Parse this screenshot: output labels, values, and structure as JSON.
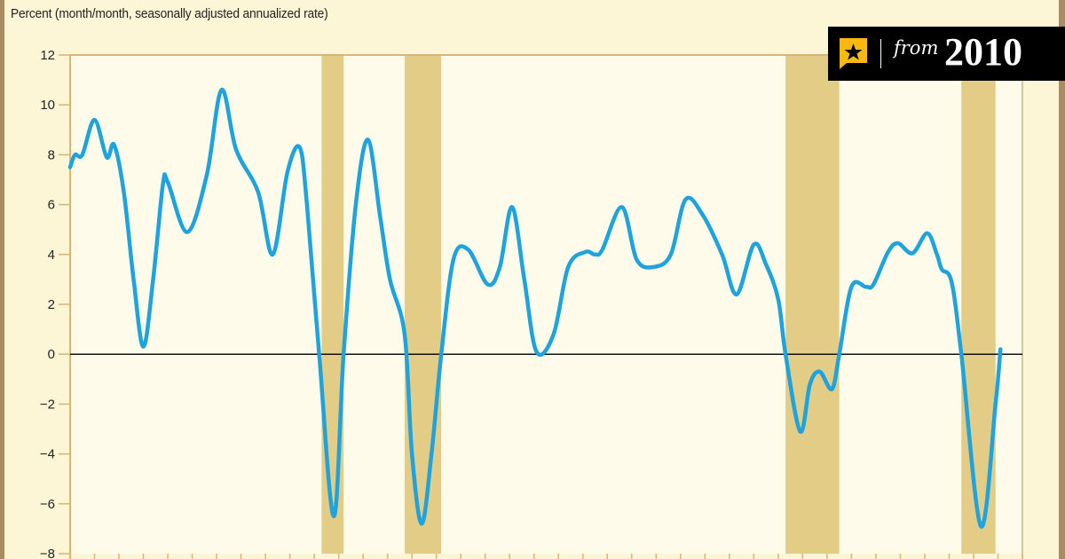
{
  "chart_data": {
    "type": "line",
    "title": "",
    "ylabel": "Percent (month/month, seasonally adjusted annualized rate)",
    "xlabel": "",
    "ylim": [
      -8,
      12
    ],
    "yticks": [
      12,
      10,
      8,
      6,
      4,
      2,
      0,
      -2,
      -4,
      -6,
      -8
    ],
    "xlim": [
      0,
      39
    ],
    "x_tick_count": 39,
    "x_tick_labels": [],
    "grid": false,
    "zero_line": true,
    "recession_bands": [
      [
        10.3,
        11.2
      ],
      [
        13.7,
        15.2
      ],
      [
        29.3,
        31.5
      ],
      [
        36.5,
        37.9
      ]
    ],
    "series": [
      {
        "x": [
          0,
          0.2,
          0.5,
          1.0,
          1.5,
          1.8,
          2.2,
          2.6,
          3.0,
          3.4,
          3.8,
          4.0,
          4.8,
          5.6,
          6.2,
          6.8,
          7.7,
          8.3,
          8.9,
          9.4,
          9.7,
          10.2,
          10.8,
          11.2,
          11.7,
          12.2,
          12.7,
          13.1,
          13.7,
          14.0,
          14.4,
          14.8,
          15.2,
          15.7,
          16.3,
          17.1,
          17.6,
          18.1,
          18.6,
          19.1,
          19.8,
          20.4,
          21.1,
          21.5,
          21.8,
          22.6,
          23.2,
          23.9,
          24.6,
          25.2,
          25.9,
          26.7,
          27.3,
          28.0,
          28.5,
          29.0,
          29.3,
          29.9,
          30.3,
          30.7,
          31.2,
          31.5,
          32.0,
          32.6,
          32.9,
          33.5,
          33.9,
          34.5,
          35.1,
          35.5,
          35.7,
          36.1,
          36.5,
          37.3,
          37.9,
          38.1
        ],
        "y": [
          7.5,
          8.0,
          8.0,
          9.4,
          7.9,
          8.4,
          6.5,
          3.0,
          0.3,
          3.0,
          6.8,
          6.9,
          4.9,
          7.2,
          10.6,
          8.2,
          6.5,
          4.0,
          7.3,
          8.3,
          6.0,
          0.0,
          -6.5,
          0.0,
          6.0,
          8.6,
          5.5,
          3.0,
          0.8,
          -4.0,
          -6.8,
          -4.0,
          0.0,
          3.8,
          4.2,
          2.8,
          3.5,
          5.9,
          3.0,
          0.1,
          0.8,
          3.5,
          4.1,
          4.0,
          4.2,
          5.9,
          3.8,
          3.5,
          4.0,
          6.2,
          5.6,
          4.0,
          2.4,
          4.4,
          3.6,
          2.2,
          0.0,
          -3.1,
          -1.2,
          -0.7,
          -1.4,
          0.0,
          2.7,
          2.7,
          2.8,
          4.1,
          4.45,
          4.05,
          4.85,
          4.0,
          3.4,
          2.9,
          0.0,
          -6.9,
          -2.0,
          0.2
        ]
      }
    ],
    "colors": {
      "line": "#1ea3de",
      "band": "#e3cc85",
      "plot_bg": "#fffbea",
      "page_bg": "#fdf6d6",
      "axis": "#d8b574"
    }
  },
  "badge": {
    "prefix": "from",
    "year": "2010",
    "icon": "star-bookmark-icon"
  }
}
